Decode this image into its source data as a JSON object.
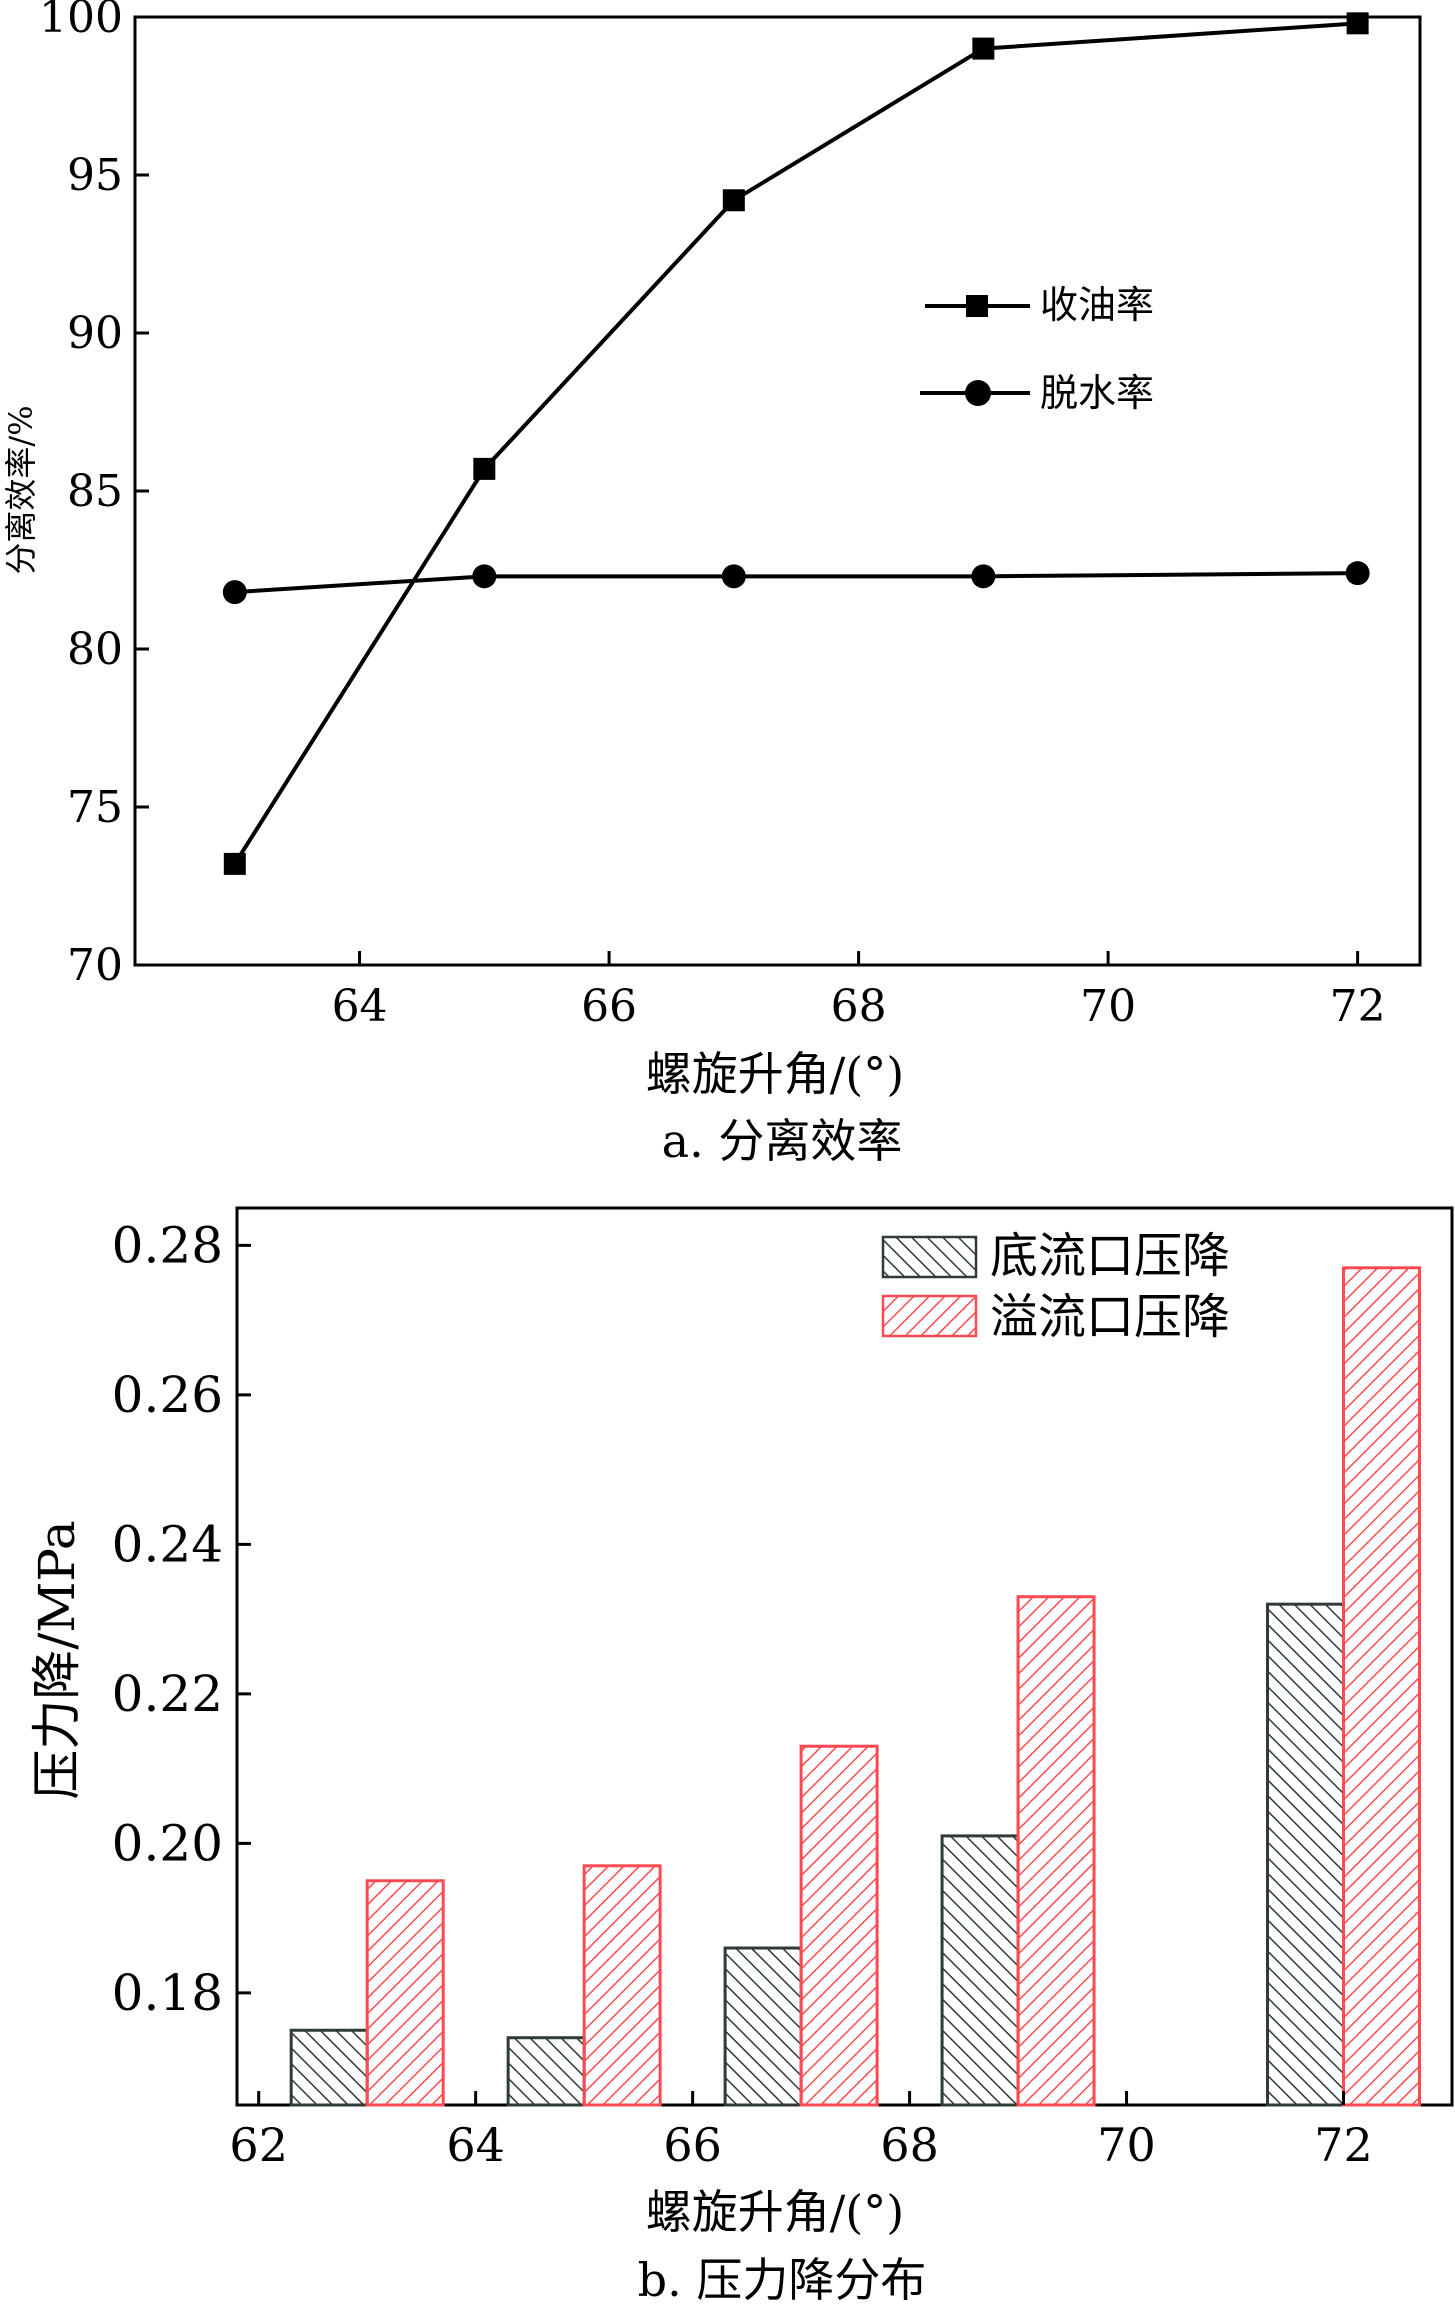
{
  "chart_data": [
    {
      "type": "line",
      "xlabel": "螺旋升角/(°)",
      "ylabel": "分离效率/%",
      "caption": "a. 分离效率",
      "xlim": [
        62.2,
        72.5
      ],
      "ylim": [
        70,
        100
      ],
      "xticks": [
        64,
        66,
        68,
        70,
        72
      ],
      "yticks": [
        70,
        75,
        80,
        85,
        90,
        95,
        100
      ],
      "legend_position": "upper-right-inside",
      "series": [
        {
          "name": "收油率",
          "marker": "square",
          "color": "#000000",
          "x": [
            63,
            65,
            67,
            69,
            72
          ],
          "y": [
            73.2,
            85.7,
            94.2,
            99.0,
            99.8
          ]
        },
        {
          "name": "脱水率",
          "marker": "circle",
          "color": "#000000",
          "x": [
            63,
            65,
            67,
            69,
            72
          ],
          "y": [
            81.8,
            82.3,
            82.3,
            82.3,
            82.4
          ]
        }
      ]
    },
    {
      "type": "bar",
      "xlabel": "螺旋升角/(°)",
      "ylabel": "压力降/MPa",
      "caption": "b. 压力降分布",
      "xlim": [
        61.8,
        73.0
      ],
      "ylim": [
        0.165,
        0.285
      ],
      "xticks": [
        62,
        64,
        66,
        68,
        70,
        72
      ],
      "yticks": [
        0.18,
        0.2,
        0.22,
        0.24,
        0.26,
        0.28
      ],
      "ytick_labels": [
        "0.18",
        "0.20",
        "0.22",
        "0.24",
        "0.26",
        "0.28"
      ],
      "legend_position": "top-right",
      "series": [
        {
          "name": "底流口压降",
          "color": "#2f3b34",
          "hatch": "backslash",
          "x": [
            63,
            65,
            67,
            69,
            72
          ],
          "values": [
            0.175,
            0.174,
            0.186,
            0.201,
            0.232
          ]
        },
        {
          "name": "溢流口压降",
          "color": "#ff4a52",
          "hatch": "slash",
          "x": [
            63,
            65,
            67,
            69,
            72
          ],
          "values": [
            0.195,
            0.197,
            0.213,
            0.233,
            0.277
          ]
        }
      ]
    }
  ]
}
